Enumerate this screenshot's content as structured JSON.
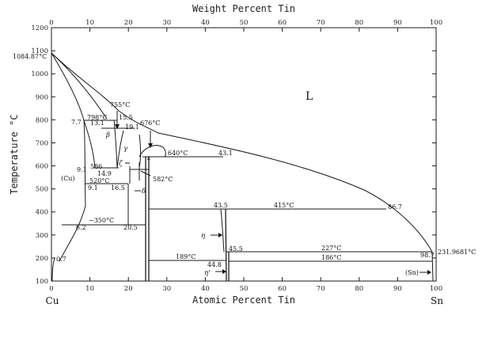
{
  "diagram": {
    "top_axis_title": "Weight Percent Tin",
    "bottom_axis_title": "Atomic Percent Tin",
    "left_axis_title": "Temperature °C",
    "top_ticks": [
      "0",
      "10",
      "20",
      "30",
      "40",
      "50",
      "60",
      "70",
      "80",
      "90",
      "100"
    ],
    "bottom_ticks": [
      "0",
      "10",
      "20",
      "30",
      "40",
      "50",
      "60",
      "70",
      "80",
      "90",
      "100"
    ],
    "left_ticks": [
      "100",
      "200",
      "300",
      "400",
      "500",
      "600",
      "700",
      "800",
      "900",
      "1000",
      "1100",
      "1200"
    ],
    "left_element": "Cu",
    "right_element": "Sn",
    "cu_melting": "1084.87°C",
    "sn_melting": "231.9681°C",
    "liquid_label": "L",
    "phases": {
      "cu": "(Cu)",
      "beta": "β",
      "gamma": "γ",
      "zeta": "ζ",
      "epsilon": "ε",
      "delta": "δ",
      "eta": "η",
      "eta_prime": "η'",
      "sn": "(Sn)"
    },
    "temperature_labels": {
      "t755": "755°C",
      "t798": "798°C",
      "t676": "676°C",
      "t640": "640°C",
      "t586": "586",
      "t520": "520°C",
      "t582": "582°C",
      "t350": "~350°C",
      "t415": "415°C",
      "t189": "189°C",
      "t227": "227°C",
      "t186": "186°C"
    },
    "composition_labels": {
      "c7_7": "7.7",
      "c13_1": "13.1",
      "c15_5": "15.5",
      "c19_1": "19.1",
      "c43_1": "43.1",
      "c9_1a": "9.1",
      "c14_9": "14.9",
      "c9_1b": "9.1",
      "c16_5": "16.5",
      "c6_2": "6.2",
      "c20_5": "20.5",
      "c0_7": "0.7",
      "c43_5": "43.5",
      "c86_7": "86.7",
      "c45_5": "45.5",
      "c44_8": "44.8",
      "c98_7": "98.7"
    }
  }
}
